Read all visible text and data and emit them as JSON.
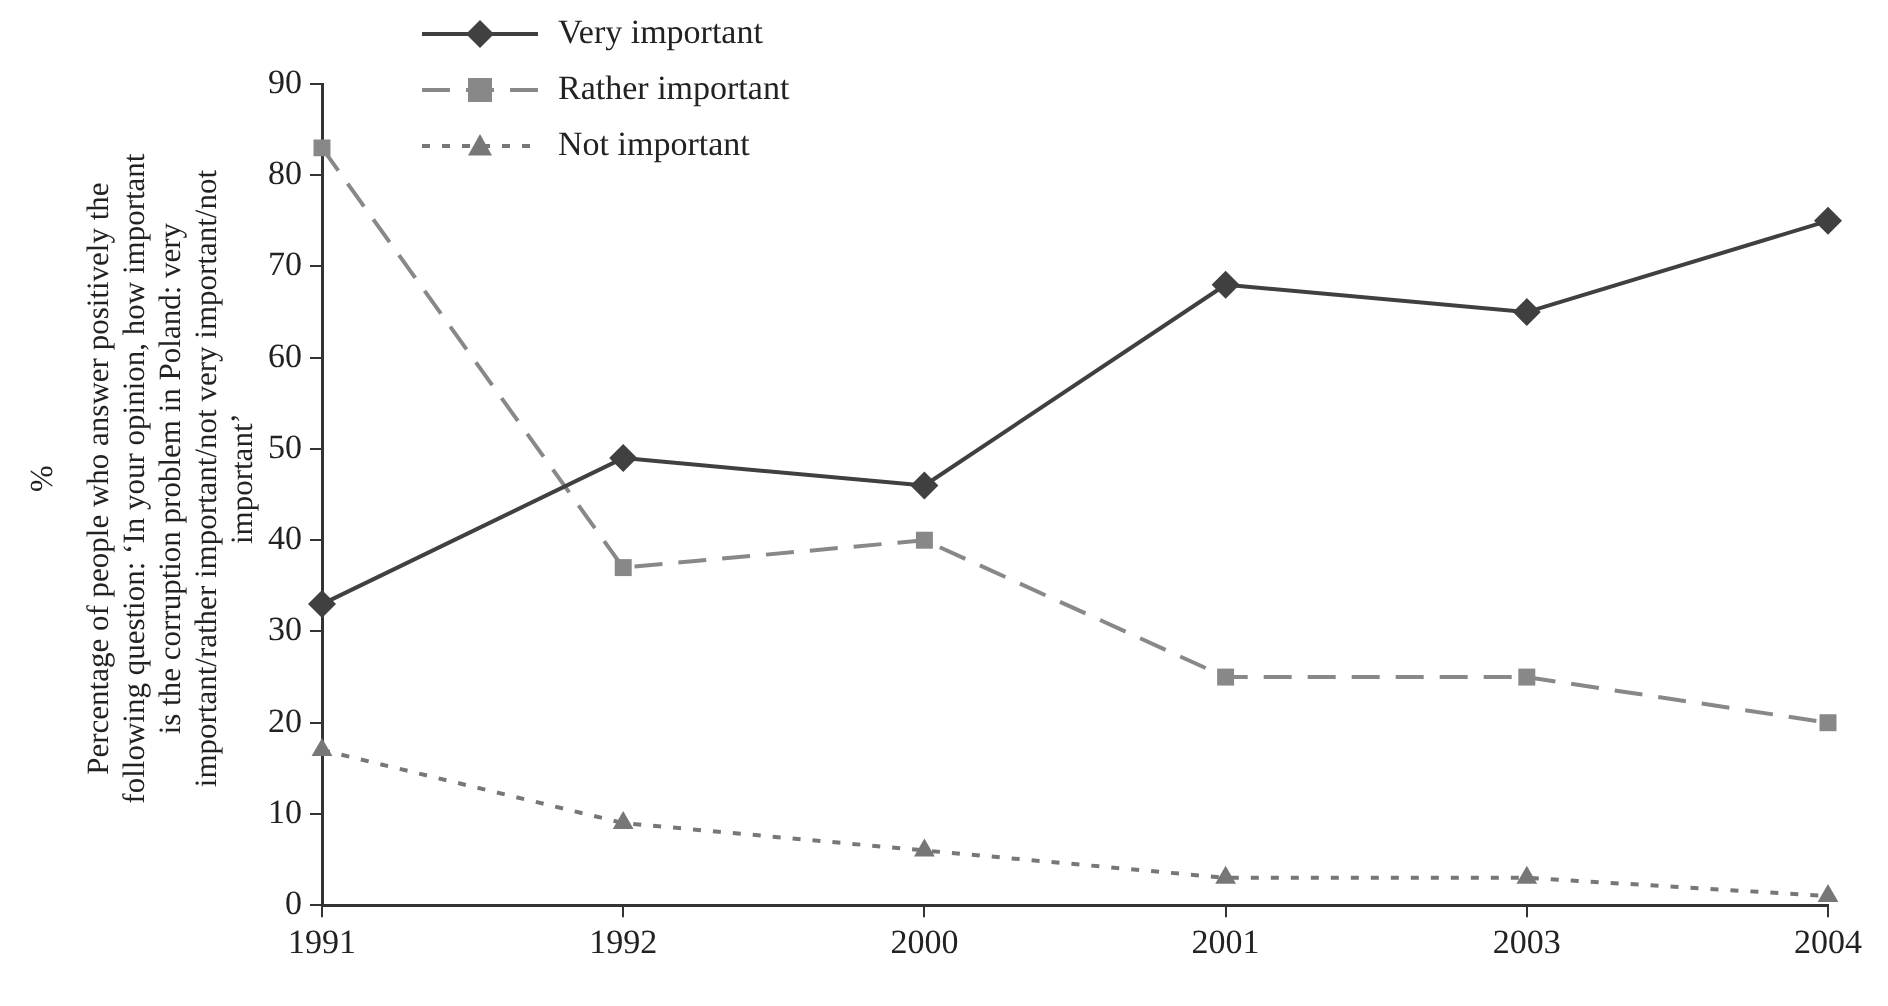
{
  "chart_data": {
    "type": "line",
    "annotations": [
      "%"
    ],
    "ylabel": "Percentage of people who answer positively the following question: ‘In your opinion, how important is the corruption problem in Poland: very important/rather important/not very important/not important’",
    "categories": [
      "1991",
      "1992",
      "2000",
      "2001",
      "2003",
      "2004"
    ],
    "series": [
      {
        "name": "Very important",
        "color": "#404040",
        "marker": "diamond",
        "line_style": "solid",
        "values": [
          33,
          49,
          46,
          68,
          65,
          75
        ]
      },
      {
        "name": "Rather important",
        "color": "#888888",
        "marker": "square",
        "line_style": "dashed",
        "values": [
          83,
          37,
          40,
          25,
          25,
          20
        ]
      },
      {
        "name": "Not important",
        "color": "#777777",
        "marker": "triangle",
        "line_style": "dotted",
        "values": [
          17,
          9,
          6,
          3,
          3,
          1
        ]
      }
    ],
    "ylim": [
      0,
      90
    ],
    "yticks": [
      0,
      10,
      20,
      30,
      40,
      50,
      60,
      70,
      80,
      90
    ],
    "grid": false,
    "legend": "top left"
  }
}
